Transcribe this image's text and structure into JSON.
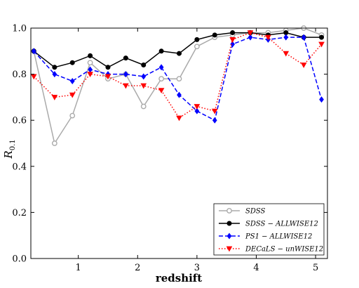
{
  "chart_data": {
    "type": "line",
    "xlabel": "redshift",
    "ylabel": "R",
    "ylabel_subscript": "0.1",
    "xlim": [
      0.2,
      5.2
    ],
    "ylim": [
      0.0,
      1.0
    ],
    "xticks": [
      1,
      2,
      3,
      4,
      5
    ],
    "yticks": [
      0.0,
      0.2,
      0.4,
      0.6,
      0.8,
      1.0
    ],
    "xtick_labels": [
      "1",
      "2",
      "3",
      "4",
      "5"
    ],
    "ytick_labels": [
      "0.0",
      "0.2",
      "0.4",
      "0.6",
      "0.8",
      "1.0"
    ],
    "grid": false,
    "legend_position": "lower-right",
    "series": [
      {
        "name": "SDSS",
        "color": "#aaaaaa",
        "line_style": "solid",
        "marker": "circle-open",
        "x": [
          0.25,
          0.6,
          0.9,
          1.2,
          1.5,
          1.8,
          2.1,
          2.4,
          2.7,
          3.0,
          3.3,
          3.6,
          3.9,
          4.2,
          4.5,
          4.8,
          5.1
        ],
        "y": [
          0.9,
          0.5,
          0.62,
          0.85,
          0.78,
          0.8,
          0.66,
          0.78,
          0.78,
          0.92,
          0.96,
          0.97,
          0.98,
          0.98,
          0.99,
          1.0,
          0.97
        ]
      },
      {
        "name": "SDSS − ALLWISE12",
        "color": "#000000",
        "line_style": "solid",
        "marker": "circle-filled",
        "x": [
          0.25,
          0.6,
          0.9,
          1.2,
          1.5,
          1.8,
          2.1,
          2.4,
          2.7,
          3.0,
          3.3,
          3.6,
          3.9,
          4.2,
          4.5,
          4.8,
          5.1
        ],
        "y": [
          0.9,
          0.83,
          0.85,
          0.88,
          0.83,
          0.87,
          0.84,
          0.9,
          0.89,
          0.95,
          0.97,
          0.98,
          0.98,
          0.97,
          0.98,
          0.96,
          0.96
        ]
      },
      {
        "name": "PS1 − ALLWISE12",
        "color": "#0000ff",
        "line_style": "dashed",
        "marker": "diamond",
        "x": [
          0.25,
          0.6,
          0.9,
          1.2,
          1.5,
          1.8,
          2.1,
          2.4,
          2.7,
          3.0,
          3.3,
          3.6,
          3.9,
          4.2,
          4.5,
          4.8,
          5.1
        ],
        "y": [
          0.9,
          0.8,
          0.77,
          0.82,
          0.8,
          0.8,
          0.79,
          0.83,
          0.71,
          0.64,
          0.6,
          0.93,
          0.96,
          0.95,
          0.96,
          0.96,
          0.69
        ]
      },
      {
        "name": "DECaLS − unWISE12",
        "color": "#ff0000",
        "line_style": "dotted",
        "marker": "triangle-down",
        "x": [
          0.25,
          0.6,
          0.9,
          1.2,
          1.5,
          1.8,
          2.1,
          2.4,
          2.7,
          3.0,
          3.3,
          3.6,
          3.9,
          4.2,
          4.5,
          4.8,
          5.1
        ],
        "y": [
          0.79,
          0.7,
          0.71,
          0.8,
          0.79,
          0.75,
          0.75,
          0.73,
          0.61,
          0.66,
          0.64,
          0.95,
          0.98,
          0.96,
          0.89,
          0.84,
          0.93
        ]
      }
    ]
  }
}
